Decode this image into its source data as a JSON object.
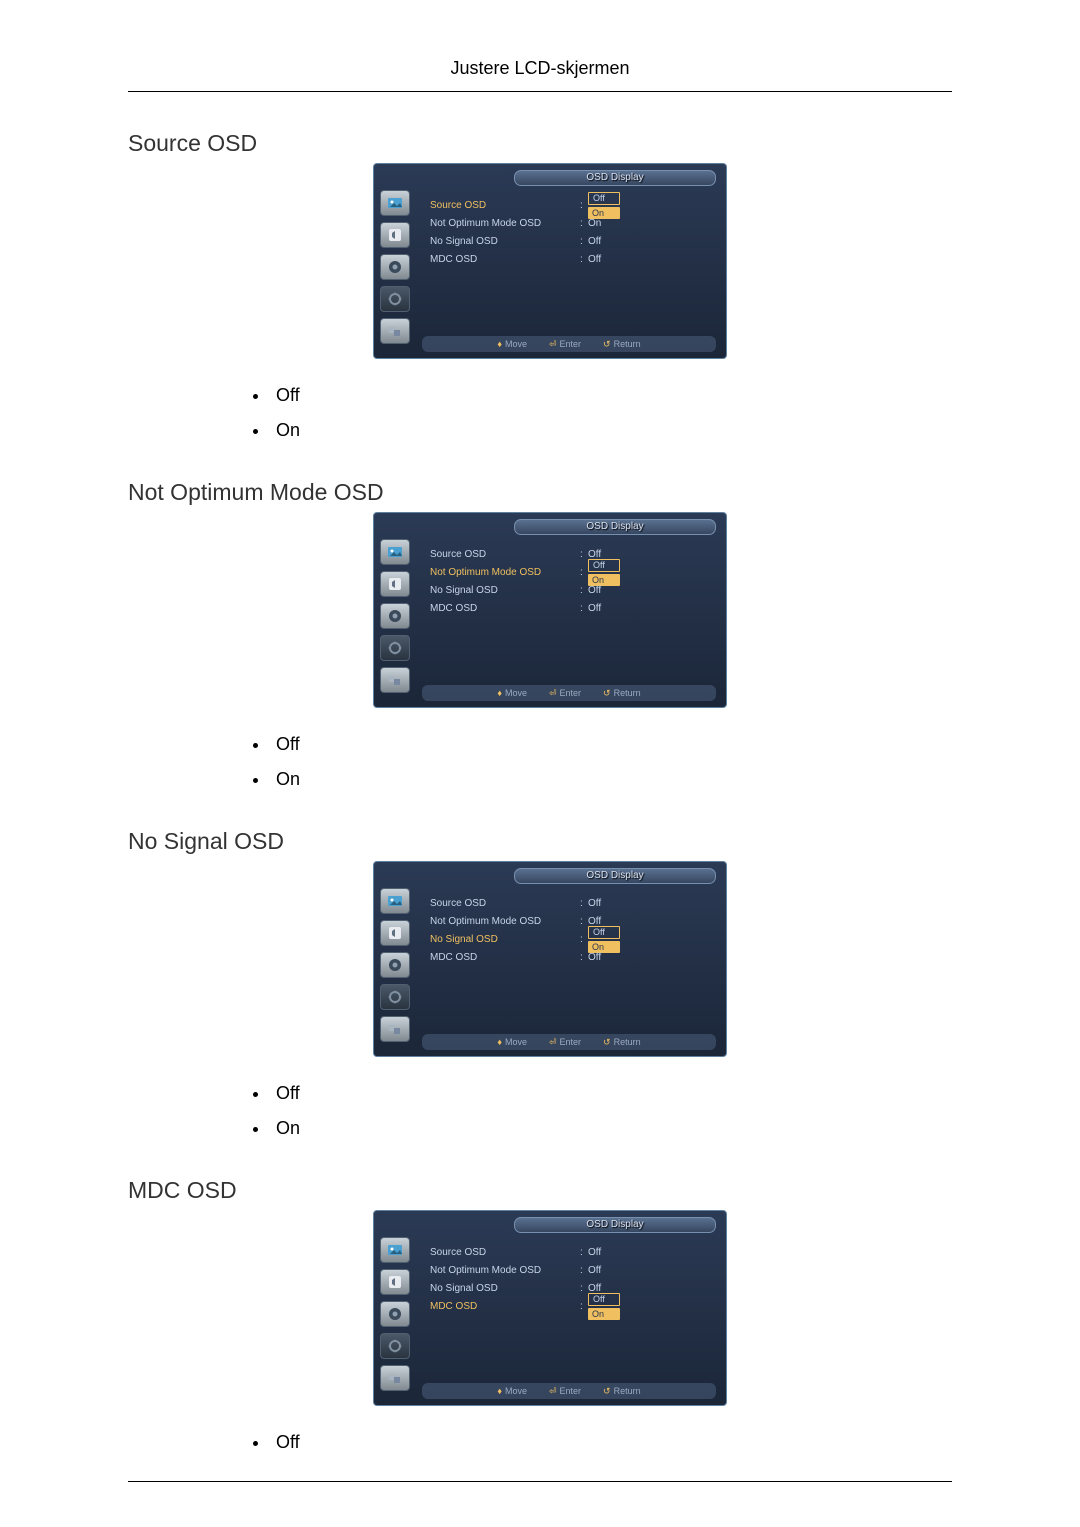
{
  "page_header": "Justere LCD-skjermen",
  "osd_title": "OSD Display",
  "osd_footer": {
    "move": "Move",
    "enter": "Enter",
    "return": "Return"
  },
  "menu_items": {
    "source": "Source OSD",
    "optimum": "Not Optimum Mode OSD",
    "nosignal": "No Signal OSD",
    "mdc": "MDC OSD"
  },
  "values": {
    "off": "Off",
    "on": "On"
  },
  "options": {
    "off": "Off",
    "on": "On"
  },
  "colors": {
    "panel_top": "#2b3a55",
    "panel_bottom": "#1b2638",
    "highlight": "#f0c060",
    "text": "#c8d4e8"
  },
  "sections": [
    {
      "key": "source",
      "heading": "Source OSD",
      "selected_index": 0,
      "rows": [
        {
          "label": "source",
          "value": "off",
          "is_selected_label": true,
          "dropdown": [
            "off",
            "on"
          ],
          "dropdown_sel": 1
        },
        {
          "label": "optimum",
          "value": "on"
        },
        {
          "label": "nosignal",
          "value": "off"
        },
        {
          "label": "mdc",
          "value": "off"
        }
      ],
      "show_options": [
        "off",
        "on"
      ]
    },
    {
      "key": "optimum",
      "heading": "Not Optimum Mode OSD",
      "selected_index": 1,
      "rows": [
        {
          "label": "source",
          "value": "off"
        },
        {
          "label": "optimum",
          "value": "off",
          "is_selected_label": true,
          "dropdown": [
            "off",
            "on"
          ],
          "dropdown_sel": 1
        },
        {
          "label": "nosignal",
          "value": "off"
        },
        {
          "label": "mdc",
          "value": "off"
        }
      ],
      "show_options": [
        "off",
        "on"
      ]
    },
    {
      "key": "nosignal",
      "heading": "No Signal OSD",
      "selected_index": 2,
      "rows": [
        {
          "label": "source",
          "value": "off"
        },
        {
          "label": "optimum",
          "value": "off"
        },
        {
          "label": "nosignal",
          "value": "off",
          "is_selected_label": true,
          "dropdown": [
            "off",
            "on"
          ],
          "dropdown_sel": 1
        },
        {
          "label": "mdc",
          "value": "off"
        }
      ],
      "show_options": [
        "off",
        "on"
      ]
    },
    {
      "key": "mdc",
      "heading": "MDC OSD",
      "selected_index": 3,
      "rows": [
        {
          "label": "source",
          "value": "off"
        },
        {
          "label": "optimum",
          "value": "off"
        },
        {
          "label": "nosignal",
          "value": "off"
        },
        {
          "label": "mdc",
          "value": "off",
          "is_selected_label": true,
          "dropdown": [
            "off",
            "on"
          ],
          "dropdown_sel": 1
        }
      ],
      "show_options": [
        "off"
      ]
    }
  ]
}
